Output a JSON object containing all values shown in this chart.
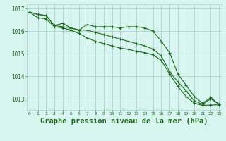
{
  "title": "Graphe pression niveau de la mer (hPa)",
  "xlabel_hours": [
    0,
    1,
    2,
    3,
    4,
    5,
    6,
    7,
    8,
    9,
    10,
    11,
    12,
    13,
    14,
    15,
    16,
    17,
    18,
    19,
    20,
    21,
    22,
    23
  ],
  "line1": [
    1016.85,
    1016.75,
    1016.7,
    1016.25,
    1016.35,
    1016.15,
    1016.05,
    1016.3,
    1016.2,
    1016.2,
    1016.2,
    1016.15,
    1016.2,
    1016.2,
    1016.15,
    1016.0,
    1015.55,
    1015.05,
    1014.1,
    1013.6,
    1013.1,
    1012.8,
    1013.05,
    1012.75
  ],
  "line2": [
    1016.85,
    1016.6,
    1016.55,
    1016.2,
    1016.15,
    1016.05,
    1015.9,
    1015.7,
    1015.55,
    1015.45,
    1015.35,
    1015.25,
    1015.2,
    1015.1,
    1015.05,
    1014.95,
    1014.7,
    1014.1,
    1013.55,
    1013.1,
    1012.8,
    1012.7,
    1012.72,
    1012.73
  ],
  "line3": [
    1016.85,
    1016.75,
    1016.7,
    1016.25,
    1016.2,
    1016.15,
    1016.05,
    1016.05,
    1015.95,
    1015.85,
    1015.75,
    1015.65,
    1015.55,
    1015.45,
    1015.35,
    1015.2,
    1014.9,
    1014.2,
    1013.75,
    1013.35,
    1012.9,
    1012.75,
    1013.0,
    1012.75
  ],
  "line_color": "#1a6b1a",
  "bg_color": "#d8f5ef",
  "grid_color": "#9ecfc4",
  "ylim": [
    1012.5,
    1017.2
  ],
  "yticks": [
    1013,
    1014,
    1015,
    1016,
    1017
  ],
  "title_color": "#1a6b1a",
  "title_fontsize": 7.5,
  "marker": "+",
  "markersize": 3.5,
  "linewidth": 0.8
}
